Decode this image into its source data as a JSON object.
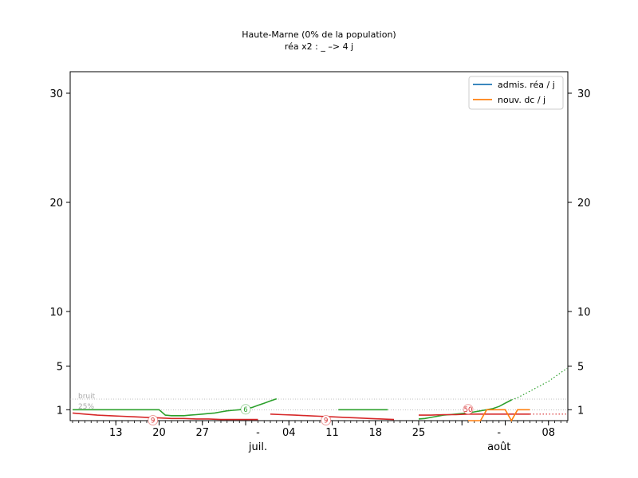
{
  "chart_data": {
    "type": "line",
    "title": "Haute-Marne (0% de la population)",
    "subtitle": "réa x2 : _ –> 4 j",
    "y_ticks": [
      1,
      5,
      10,
      20,
      30
    ],
    "ylim": [
      0,
      32
    ],
    "x_ticks": [
      "13",
      "20",
      "27",
      "-",
      "04",
      "11",
      "18",
      "25",
      "-",
      "08"
    ],
    "month_labels": [
      "juil.",
      "août"
    ],
    "threshold_labels": [
      "bruit",
      "25%"
    ],
    "legend": {
      "placement": "top-right",
      "items": [
        {
          "label": "admis. réa / j",
          "color": "#1f77b4"
        },
        {
          "label": "nouv. dc / j",
          "color": "#ff7f0e"
        }
      ]
    },
    "series": [
      {
        "name": "admis. réa / j",
        "color": "#2ca02c",
        "x": [
          0,
          1,
          2,
          3,
          4,
          5,
          6,
          7,
          8,
          9,
          10,
          11,
          12,
          13,
          14,
          15,
          16,
          17,
          18,
          19,
          20,
          21,
          22,
          23,
          24,
          25,
          26,
          27,
          28,
          29,
          30,
          31,
          32,
          33,
          34,
          35,
          36,
          37,
          38,
          39,
          40,
          41,
          42,
          43,
          44,
          45,
          46,
          47,
          48,
          49,
          50,
          51,
          52,
          53,
          54,
          55,
          56,
          57,
          58,
          59,
          60,
          61,
          62,
          63,
          64,
          65,
          66,
          67,
          68,
          69,
          70,
          71,
          72,
          73,
          74,
          75,
          76,
          77,
          78,
          79,
          80
        ],
        "y": [
          1,
          1,
          1,
          1,
          1,
          1,
          1,
          1,
          1,
          1,
          1,
          1,
          1,
          1,
          1,
          0.5,
          0.45,
          0.45,
          0.45,
          0.5,
          0.55,
          0.6,
          0.65,
          0.7,
          0.8,
          0.9,
          0.95,
          1,
          1.1,
          1.2,
          1.4,
          1.6,
          1.8,
          2,
          null,
          null,
          null,
          null,
          null,
          null,
          null,
          null,
          null,
          null,
          null,
          null,
          null,
          null,
          null,
          null,
          null,
          null,
          null,
          null,
          null,
          null,
          null,
          null,
          null,
          null,
          null,
          null,
          null,
          null,
          null,
          null,
          null,
          null,
          null,
          null,
          null,
          null,
          null,
          null,
          null,
          null,
          null,
          null,
          null,
          null,
          null
        ],
        "style": "solid"
      },
      {
        "name": "",
        "color": "#2ca02c",
        "x": [
          43,
          44,
          45,
          46,
          47,
          48,
          49,
          50,
          51
        ],
        "y": [
          1,
          1,
          1,
          1,
          1,
          1,
          1,
          1,
          1
        ],
        "style": "solid"
      },
      {
        "name": "",
        "color": "#2ca02c",
        "x": [
          56,
          57,
          58,
          59,
          60,
          61,
          62,
          63,
          64,
          65,
          66,
          67,
          68,
          69,
          70,
          71
        ],
        "y": [
          0.15,
          0.2,
          0.3,
          0.4,
          0.5,
          0.55,
          0.6,
          0.65,
          0.7,
          0.8,
          0.9,
          1,
          1.1,
          1.3,
          1.6,
          1.9
        ],
        "style": "solid"
      },
      {
        "name": "",
        "color": "#2ca02c",
        "x": [
          71,
          72,
          73,
          74,
          75,
          76,
          77,
          78,
          79,
          80
        ],
        "y": [
          1.9,
          2.1,
          2.4,
          2.7,
          3,
          3.3,
          3.6,
          4,
          4.4,
          4.8
        ],
        "style": "dotted"
      },
      {
        "name": "",
        "color": "#d62728",
        "x": [
          0,
          2,
          4,
          6,
          8,
          10,
          12,
          14,
          16,
          18,
          20,
          22,
          24,
          26,
          28,
          30
        ],
        "y": [
          0.7,
          0.6,
          0.5,
          0.45,
          0.4,
          0.35,
          0.3,
          0.25,
          0.2,
          0.2,
          0.15,
          0.15,
          0.1,
          0.1,
          0.1,
          0.1
        ],
        "style": "solid"
      },
      {
        "name": "",
        "color": "#d62728",
        "x": [
          32,
          34,
          36,
          38,
          40,
          42,
          44,
          46,
          48,
          50,
          52
        ],
        "y": [
          0.6,
          0.55,
          0.5,
          0.45,
          0.4,
          0.35,
          0.3,
          0.25,
          0.2,
          0.15,
          0.1
        ],
        "style": "solid"
      },
      {
        "name": "",
        "color": "#d62728",
        "x": [
          56,
          58,
          60,
          62,
          64,
          66,
          68,
          70,
          72,
          74
        ],
        "y": [
          0.5,
          0.5,
          0.55,
          0.55,
          0.6,
          0.6,
          0.6,
          0.6,
          0.6,
          0.6
        ],
        "style": "solid"
      },
      {
        "name": "",
        "color": "#d62728",
        "x": [
          74,
          76,
          78,
          80
        ],
        "y": [
          0.6,
          0.6,
          0.6,
          0.6
        ],
        "style": "dotted"
      },
      {
        "name": "nouv. dc / j",
        "color": "#ff7f0e",
        "x": [
          64,
          65,
          66,
          67,
          68,
          69,
          70,
          71,
          72,
          73,
          74
        ],
        "y": [
          0,
          0,
          0,
          1,
          1,
          1,
          1,
          0,
          1,
          1,
          1
        ],
        "style": "solid"
      }
    ],
    "markers": [
      {
        "label": "9",
        "color": "#d62728",
        "x": 13,
        "y": 0
      },
      {
        "label": "6",
        "color": "#2ca02c",
        "x": 28,
        "y": 1
      },
      {
        "label": "9",
        "color": "#d62728",
        "x": 41,
        "y": 0
      },
      {
        "label": "50",
        "color": "#d62728",
        "x": 64,
        "y": 1
      }
    ]
  }
}
